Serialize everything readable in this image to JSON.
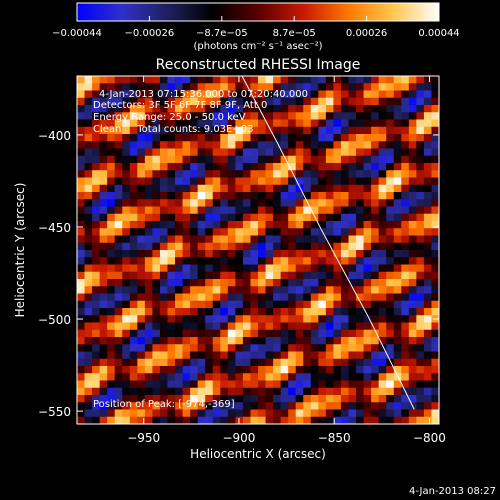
{
  "chart_data": {
    "type": "heatmap",
    "title": "Reconstructed RHESSI Image",
    "xlabel": "Heliocentric X (arcsec)",
    "ylabel": "Heliocentric Y (arcsec)",
    "xlim": [
      -985,
      -795
    ],
    "ylim": [
      -557,
      -368
    ],
    "xticks": [
      {
        "value": -950,
        "label": "-950"
      },
      {
        "value": -900,
        "label": "-900"
      },
      {
        "value": -850,
        "label": "-850"
      },
      {
        "value": -800,
        "label": "-800"
      }
    ],
    "yticks": [
      {
        "value": -400,
        "label": "-400"
      },
      {
        "value": -450,
        "label": "-450"
      },
      {
        "value": -500,
        "label": "-500"
      },
      {
        "value": -550,
        "label": "-550"
      }
    ],
    "colorbar": {
      "min": -0.00044,
      "max": 0.00044,
      "ticks": [
        "-0.00044",
        "-0.00026",
        "-8.7e-05",
        "8.7e-05",
        "0.00026",
        "0.00044"
      ],
      "unit_label": "(photons cm⁻² s⁻¹ asec⁻²)",
      "colormap": [
        "#0000ff",
        "#3030c8",
        "#202060",
        "#000000",
        "#5a0000",
        "#c81800",
        "#ff7800",
        "#ffc850",
        "#ffffff"
      ]
    },
    "limb_line": [
      [
        -904,
        -357
      ],
      [
        -880,
        -404
      ],
      [
        -857,
        -451
      ],
      [
        -832,
        -499
      ],
      [
        -808,
        -549
      ]
    ],
    "pattern": {
      "description_values": "alternating positive/negative stripes",
      "stripe_slope": -0.34,
      "grid_cols": 48,
      "grid_rows": 48
    },
    "annotations": {
      "time_range": "4-Jan-2013 07:15:36.000 to 07:20:40.000",
      "detectors": "Detectors: 3F 5F 6F 7F 8F 9F, Att 0",
      "energy": "Energy Range: 25.0 - 50.0 keV",
      "clean": "Clean     Total counts: 9.03E+03",
      "peak": "Position of Peak: [-974,-369]"
    },
    "footer_date": "4-Jan-2013 08:27",
    "colors": {
      "background": "#000000",
      "text": "#ffffff"
    }
  }
}
